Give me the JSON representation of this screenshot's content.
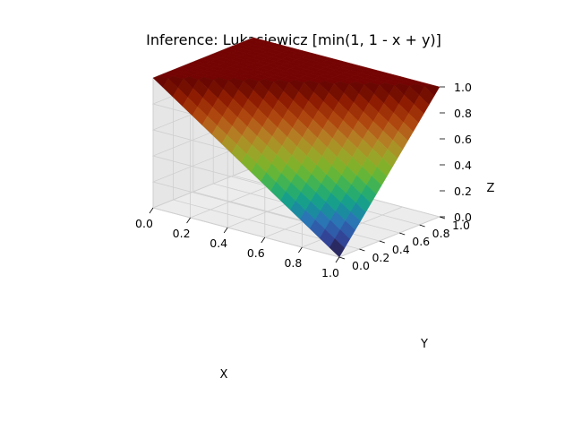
{
  "chart_data": {
    "type": "surface3d",
    "title": "Inference: Lukasiewicz [min(1, 1 - x + y)]",
    "xlabel": "X",
    "ylabel": "Y",
    "zlabel": "Z",
    "function": "z = min(1, 1 - x + y)",
    "xlim": [
      0,
      1
    ],
    "ylim": [
      0,
      1
    ],
    "zlim": [
      0,
      1
    ],
    "x_ticks": [
      "0.0",
      "0.2",
      "0.4",
      "0.6",
      "0.8",
      "1.0"
    ],
    "y_ticks": [
      "0.0",
      "0.2",
      "0.4",
      "0.6",
      "0.8",
      "1.0"
    ],
    "z_ticks": [
      "0.0",
      "0.2",
      "0.4",
      "0.6",
      "0.8",
      "1.0"
    ],
    "grid_points": 20,
    "colormap": "turbo",
    "grid": true
  }
}
